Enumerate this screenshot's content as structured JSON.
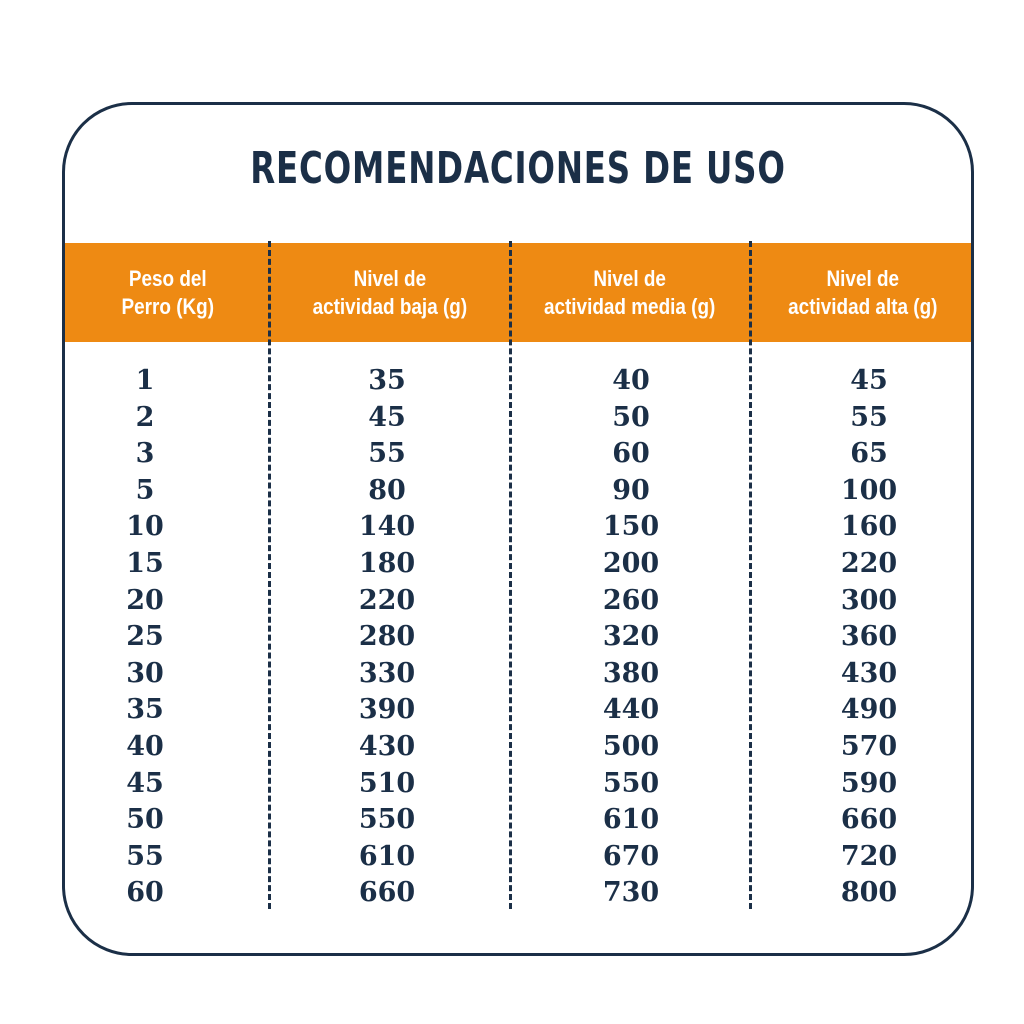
{
  "title": "RECOMENDACIONES DE USO",
  "colors": {
    "navy": "#1b2f47",
    "orange": "#ee8a13",
    "white": "#ffffff"
  },
  "table": {
    "headers": [
      "Peso del\nPerro (Kg)",
      "Nivel de\nactividad baja (g)",
      "Nivel de\nactividad media (g)",
      "Nivel de\nactividad alta (g)"
    ],
    "columns": [
      [
        "1",
        "2",
        "3",
        "5",
        "10",
        "15",
        "20",
        "25",
        "30",
        "35",
        "40",
        "45",
        "50",
        "55",
        "60"
      ],
      [
        "35",
        "45",
        "55",
        "80",
        "140",
        "180",
        "220",
        "280",
        "330",
        "390",
        "430",
        "510",
        "550",
        "610",
        "660"
      ],
      [
        "40",
        "50",
        "60",
        "90",
        "150",
        "200",
        "260",
        "320",
        "380",
        "440",
        "500",
        "550",
        "610",
        "670",
        "730"
      ],
      [
        "45",
        "55",
        "65",
        "100",
        "160",
        "220",
        "300",
        "360",
        "430",
        "490",
        "570",
        "590",
        "660",
        "720",
        "800"
      ]
    ]
  }
}
